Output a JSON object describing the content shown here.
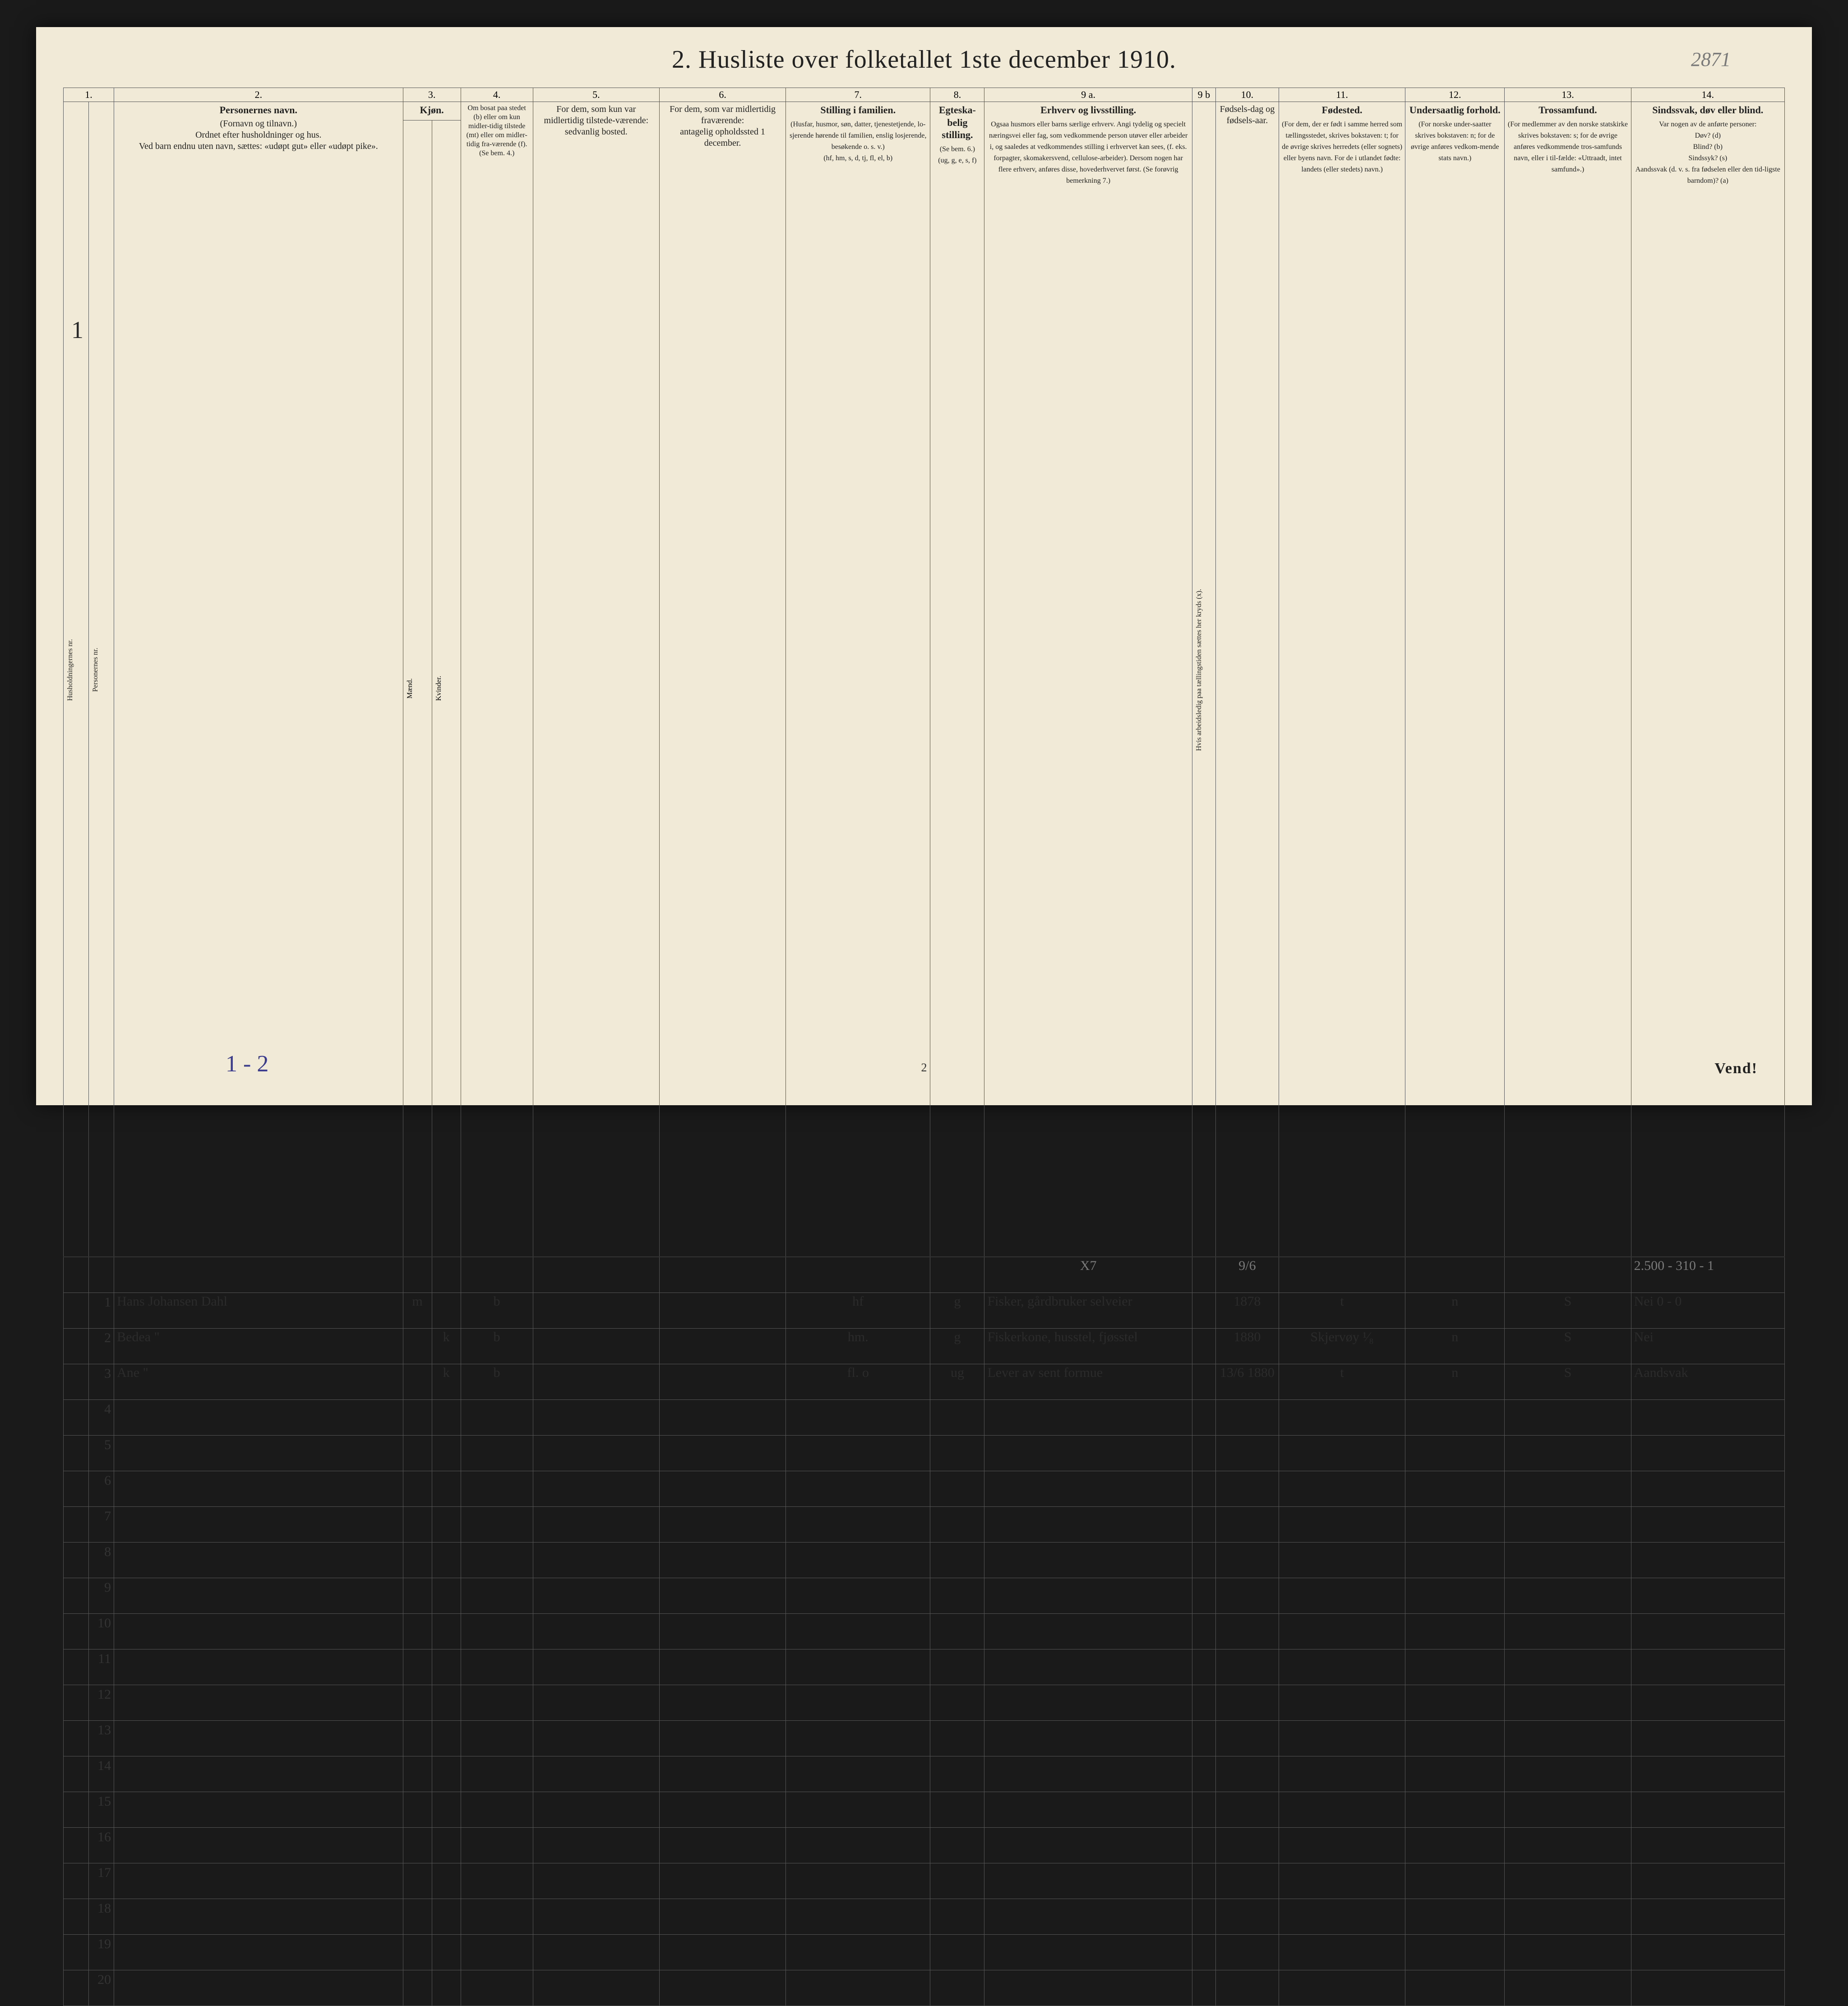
{
  "title": "2.  Husliste over folketallet 1ste december 1910.",
  "corner_note": "2871",
  "margin_left_note": "1",
  "footer_page_num": "2",
  "footer_left_note": "1 - 2",
  "vend": "Vend!",
  "col_nums": [
    "1.",
    "2.",
    "3.",
    "4.",
    "5.",
    "6.",
    "7.",
    "8.",
    "9 a.",
    "9 b",
    "10.",
    "11.",
    "12.",
    "13.",
    "14."
  ],
  "headers": {
    "c1a": "Husholdningernes nr.",
    "c1b": "Personernes nr.",
    "c2_title": "Personernes navn.",
    "c2_body": "(Fornavn og tilnavn.)\nOrdnet efter husholdninger og hus.\nVed barn endnu uten navn, sættes: «udøpt gut» eller «udøpt pike».",
    "c3_title": "Kjøn.",
    "c3_sub_a": "Mænd.",
    "c3_sub_b": "Kvinder.",
    "c3_foot": "m. | k.",
    "c4": "Om bosat paa stedet (b) eller om kun midler-tidig tilstede (mt) eller om midler-tidig fra-værende (f). (Se bem. 4.)",
    "c5": "For dem, som kun var midlertidig tilstede-værende:\nsedvanlig bosted.",
    "c6": "For dem, som var midlertidig fraværende:\nantagelig opholdssted 1 december.",
    "c7_title": "Stilling i familien.",
    "c7_body": "(Husfar, husmor, søn, datter, tjenestetjende, lo-sjerende hørende til familien, enslig losjerende, besøkende o. s. v.)\n(hf, hm, s, d, tj, fl, el, b)",
    "c8_title": "Egteska-belig stilling.",
    "c8_body": "(Se bem. 6.)\n(ug, g, e, s, f)",
    "c9a_title": "Erhverv og livsstilling.",
    "c9a_body": "Ogsaa husmors eller barns særlige erhverv. Angi tydelig og specielt næringsvei eller fag, som vedkommende person utøver eller arbeider i, og saaledes at vedkommendes stilling i erhvervet kan sees, (f. eks. forpagter, skomakersvend, cellulose-arbeider). Dersom nogen har flere erhverv, anføres disse, hovederhvervet først. (Se forøvrig bemerkning 7.)",
    "c9b": "Hvis arbeidsledig paa tællingstiden sættes her kryds (x).",
    "c10": "Fødsels-dag og fødsels-aar.",
    "c11_title": "Fødested.",
    "c11_body": "(For dem, der er født i samme herred som tællingsstedet, skrives bokstaven: t; for de øvrige skrives herredets (eller sognets) eller byens navn. For de i utlandet fødte: landets (eller stedets) navn.)",
    "c12_title": "Undersaatlig forhold.",
    "c12_body": "(For norske under-saatter skrives bokstaven: n; for de øvrige anføres vedkom-mende stats navn.)",
    "c13_title": "Trossamfund.",
    "c13_body": "(For medlemmer av den norske statskirke skrives bokstaven: s; for de øvrige anføres vedkommende tros-samfunds navn, eller i til-fælde: «Uttraadt, intet samfund».)",
    "c14_title": "Sindssvak, døv eller blind.",
    "c14_body": "Var nogen av de anførte personer:\nDøv?       (d)\nBlind?     (b)\nSindssyk?  (s)\nAandssvak (d. v. s. fra fødselen eller den tid-ligste barndom)?  (a)"
  },
  "top_pencil_row": {
    "c9a": "X7",
    "c10": "9/6",
    "c14": "2.500 - 310 - 1"
  },
  "rows": [
    {
      "num": "1",
      "name": "Hans Johansen Dahl",
      "sex_m": "m",
      "sex_k": "",
      "col4": "b",
      "col5": "",
      "col6": "",
      "col7": "hf",
      "col8": "g",
      "col9a": "Fisker, gårdbruker selveier",
      "col9b": "",
      "col10": "1878",
      "col11": "t",
      "col12": "n",
      "col13": "S",
      "col14": "Nei 0 - 0"
    },
    {
      "num": "2",
      "name": "Bedea                         \"",
      "sex_m": "",
      "sex_k": "k",
      "col4": "b",
      "col5": "",
      "col6": "",
      "col7": "hm.",
      "col8": "g",
      "col9a": "Fiskerkone, husstel, fjøsstel",
      "col9b": "",
      "col10": "1880",
      "col11": "Skjervøy  ¹⁄₈",
      "col12": "n",
      "col13": "S",
      "col14": "Nei"
    },
    {
      "num": "3",
      "name": "Ane                            \"",
      "sex_m": "",
      "sex_k": "k",
      "col4": "b",
      "col5": "",
      "col6": "",
      "col7": "fl.     o",
      "col8": "ug",
      "col9a": "Lever av sent formue",
      "col9b": "",
      "col10": "13/6 1880",
      "col11": "t",
      "col12": "n",
      "col13": "S",
      "col14": "Aandsvak"
    }
  ],
  "empty_rows": [
    4,
    5,
    6,
    7,
    8,
    9,
    10,
    11,
    12,
    13,
    14,
    15,
    16,
    17,
    18,
    19,
    20
  ],
  "colors": {
    "paper": "#f0ead6",
    "ink": "#222222",
    "handwriting": "#2b2b2b",
    "pencil": "#7a7a7a",
    "blue_ink": "#3b3b8f",
    "border": "#555555",
    "page_bg": "#1a1a1a"
  }
}
